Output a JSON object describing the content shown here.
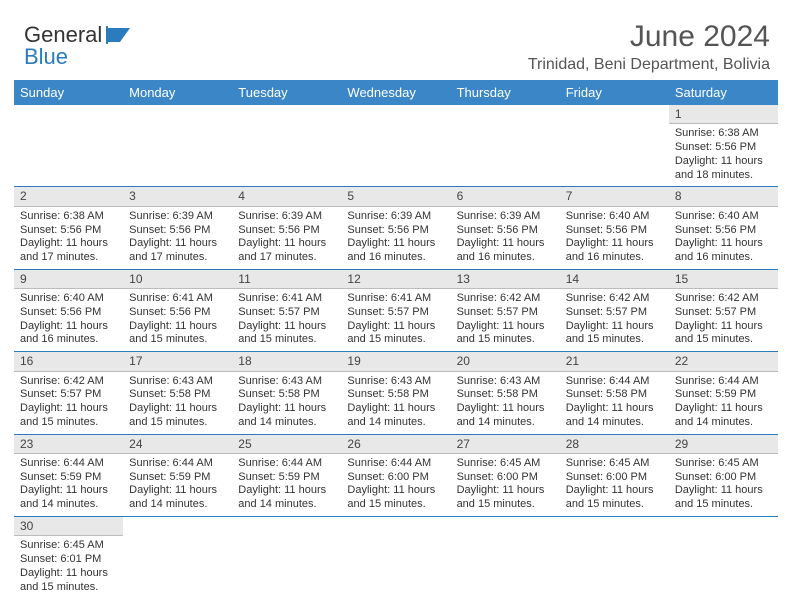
{
  "brand": {
    "word1": "General",
    "word2": "Blue"
  },
  "title": "June 2024",
  "location": "Trinidad, Beni Department, Bolivia",
  "colors": {
    "header_bg": "#3b86c6",
    "row_divider": "#2b7bbf",
    "daynum_bg": "#e8e8e8",
    "logo_blue": "#2b7bbf",
    "text": "#333333"
  },
  "day_headers": [
    "Sunday",
    "Monday",
    "Tuesday",
    "Wednesday",
    "Thursday",
    "Friday",
    "Saturday"
  ],
  "weeks": [
    [
      null,
      null,
      null,
      null,
      null,
      null,
      {
        "n": "1",
        "sr": "Sunrise: 6:38 AM",
        "ss": "Sunset: 5:56 PM",
        "dl": "Daylight: 11 hours and 18 minutes."
      }
    ],
    [
      {
        "n": "2",
        "sr": "Sunrise: 6:38 AM",
        "ss": "Sunset: 5:56 PM",
        "dl": "Daylight: 11 hours and 17 minutes."
      },
      {
        "n": "3",
        "sr": "Sunrise: 6:39 AM",
        "ss": "Sunset: 5:56 PM",
        "dl": "Daylight: 11 hours and 17 minutes."
      },
      {
        "n": "4",
        "sr": "Sunrise: 6:39 AM",
        "ss": "Sunset: 5:56 PM",
        "dl": "Daylight: 11 hours and 17 minutes."
      },
      {
        "n": "5",
        "sr": "Sunrise: 6:39 AM",
        "ss": "Sunset: 5:56 PM",
        "dl": "Daylight: 11 hours and 16 minutes."
      },
      {
        "n": "6",
        "sr": "Sunrise: 6:39 AM",
        "ss": "Sunset: 5:56 PM",
        "dl": "Daylight: 11 hours and 16 minutes."
      },
      {
        "n": "7",
        "sr": "Sunrise: 6:40 AM",
        "ss": "Sunset: 5:56 PM",
        "dl": "Daylight: 11 hours and 16 minutes."
      },
      {
        "n": "8",
        "sr": "Sunrise: 6:40 AM",
        "ss": "Sunset: 5:56 PM",
        "dl": "Daylight: 11 hours and 16 minutes."
      }
    ],
    [
      {
        "n": "9",
        "sr": "Sunrise: 6:40 AM",
        "ss": "Sunset: 5:56 PM",
        "dl": "Daylight: 11 hours and 16 minutes."
      },
      {
        "n": "10",
        "sr": "Sunrise: 6:41 AM",
        "ss": "Sunset: 5:56 PM",
        "dl": "Daylight: 11 hours and 15 minutes."
      },
      {
        "n": "11",
        "sr": "Sunrise: 6:41 AM",
        "ss": "Sunset: 5:57 PM",
        "dl": "Daylight: 11 hours and 15 minutes."
      },
      {
        "n": "12",
        "sr": "Sunrise: 6:41 AM",
        "ss": "Sunset: 5:57 PM",
        "dl": "Daylight: 11 hours and 15 minutes."
      },
      {
        "n": "13",
        "sr": "Sunrise: 6:42 AM",
        "ss": "Sunset: 5:57 PM",
        "dl": "Daylight: 11 hours and 15 minutes."
      },
      {
        "n": "14",
        "sr": "Sunrise: 6:42 AM",
        "ss": "Sunset: 5:57 PM",
        "dl": "Daylight: 11 hours and 15 minutes."
      },
      {
        "n": "15",
        "sr": "Sunrise: 6:42 AM",
        "ss": "Sunset: 5:57 PM",
        "dl": "Daylight: 11 hours and 15 minutes."
      }
    ],
    [
      {
        "n": "16",
        "sr": "Sunrise: 6:42 AM",
        "ss": "Sunset: 5:57 PM",
        "dl": "Daylight: 11 hours and 15 minutes."
      },
      {
        "n": "17",
        "sr": "Sunrise: 6:43 AM",
        "ss": "Sunset: 5:58 PM",
        "dl": "Daylight: 11 hours and 15 minutes."
      },
      {
        "n": "18",
        "sr": "Sunrise: 6:43 AM",
        "ss": "Sunset: 5:58 PM",
        "dl": "Daylight: 11 hours and 14 minutes."
      },
      {
        "n": "19",
        "sr": "Sunrise: 6:43 AM",
        "ss": "Sunset: 5:58 PM",
        "dl": "Daylight: 11 hours and 14 minutes."
      },
      {
        "n": "20",
        "sr": "Sunrise: 6:43 AM",
        "ss": "Sunset: 5:58 PM",
        "dl": "Daylight: 11 hours and 14 minutes."
      },
      {
        "n": "21",
        "sr": "Sunrise: 6:44 AM",
        "ss": "Sunset: 5:58 PM",
        "dl": "Daylight: 11 hours and 14 minutes."
      },
      {
        "n": "22",
        "sr": "Sunrise: 6:44 AM",
        "ss": "Sunset: 5:59 PM",
        "dl": "Daylight: 11 hours and 14 minutes."
      }
    ],
    [
      {
        "n": "23",
        "sr": "Sunrise: 6:44 AM",
        "ss": "Sunset: 5:59 PM",
        "dl": "Daylight: 11 hours and 14 minutes."
      },
      {
        "n": "24",
        "sr": "Sunrise: 6:44 AM",
        "ss": "Sunset: 5:59 PM",
        "dl": "Daylight: 11 hours and 14 minutes."
      },
      {
        "n": "25",
        "sr": "Sunrise: 6:44 AM",
        "ss": "Sunset: 5:59 PM",
        "dl": "Daylight: 11 hours and 14 minutes."
      },
      {
        "n": "26",
        "sr": "Sunrise: 6:44 AM",
        "ss": "Sunset: 6:00 PM",
        "dl": "Daylight: 11 hours and 15 minutes."
      },
      {
        "n": "27",
        "sr": "Sunrise: 6:45 AM",
        "ss": "Sunset: 6:00 PM",
        "dl": "Daylight: 11 hours and 15 minutes."
      },
      {
        "n": "28",
        "sr": "Sunrise: 6:45 AM",
        "ss": "Sunset: 6:00 PM",
        "dl": "Daylight: 11 hours and 15 minutes."
      },
      {
        "n": "29",
        "sr": "Sunrise: 6:45 AM",
        "ss": "Sunset: 6:00 PM",
        "dl": "Daylight: 11 hours and 15 minutes."
      }
    ],
    [
      {
        "n": "30",
        "sr": "Sunrise: 6:45 AM",
        "ss": "Sunset: 6:01 PM",
        "dl": "Daylight: 11 hours and 15 minutes."
      },
      null,
      null,
      null,
      null,
      null,
      null
    ]
  ]
}
